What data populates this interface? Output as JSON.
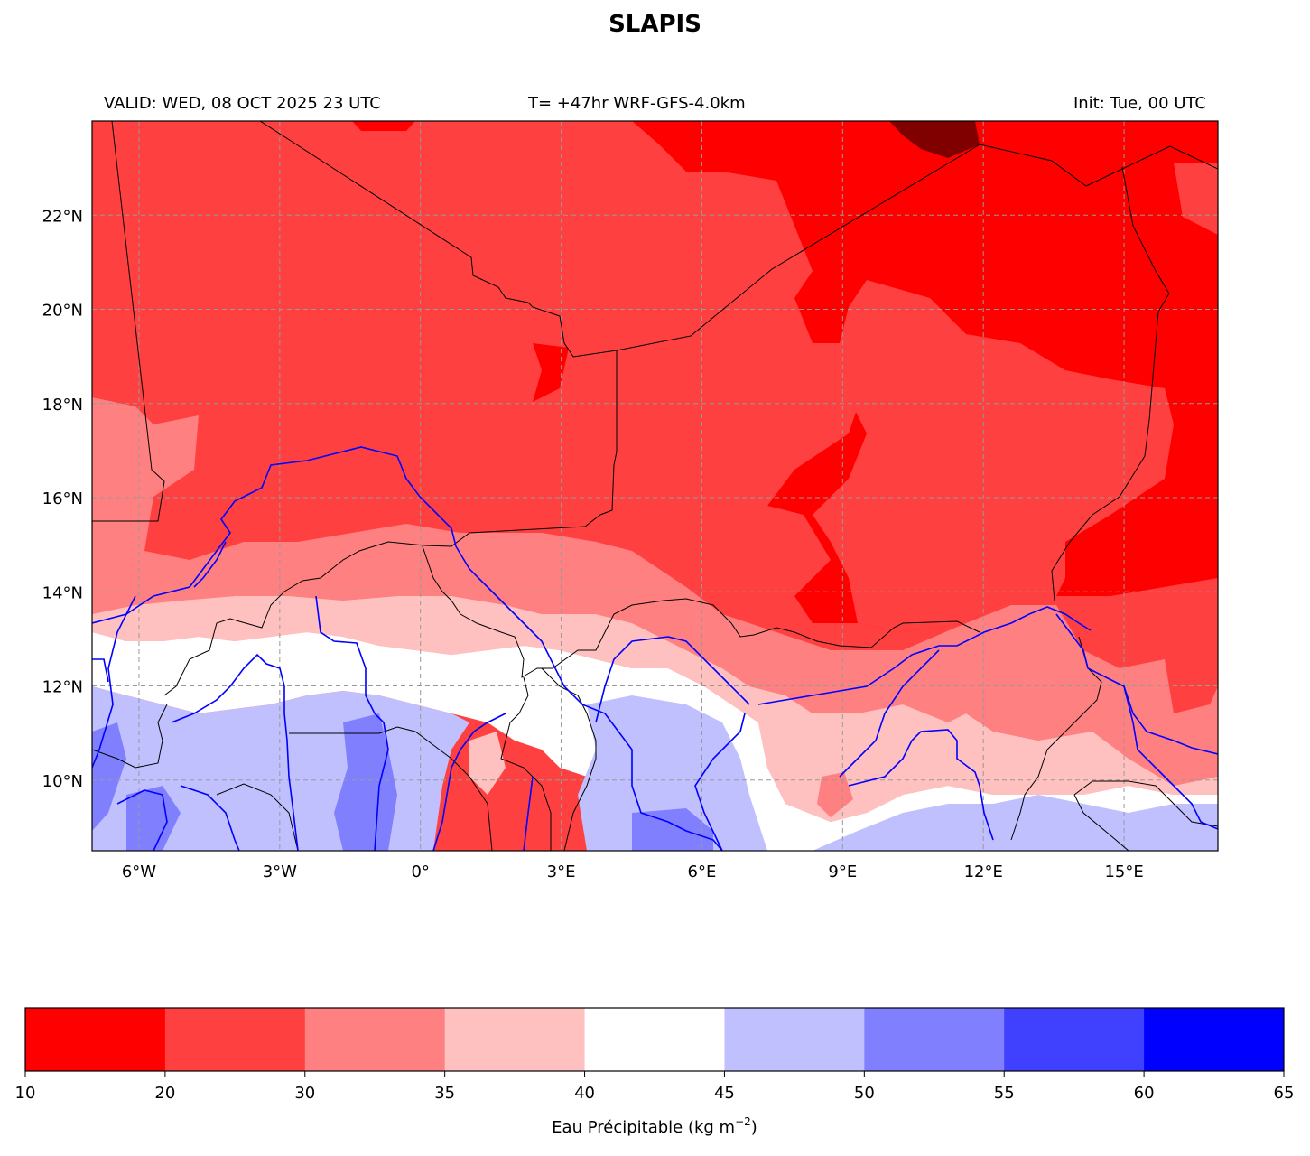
{
  "title": "SLAPIS",
  "header": {
    "valid": "VALID: WED, 08 OCT 2025 23 UTC",
    "run": "T= +47hr WRF-GFS-4.0km",
    "init": "Init: Tue, 00 UTC"
  },
  "map": {
    "lon_range": [
      -7,
      17
    ],
    "lat_range": [
      8.5,
      24
    ],
    "lon_ticks": [
      {
        "value": -6,
        "label": "6°W"
      },
      {
        "value": -3,
        "label": "3°W"
      },
      {
        "value": 0,
        "label": "0°"
      },
      {
        "value": 3,
        "label": "3°E"
      },
      {
        "value": 6,
        "label": "6°E"
      },
      {
        "value": 9,
        "label": "9°E"
      },
      {
        "value": 12,
        "label": "12°E"
      },
      {
        "value": 15,
        "label": "15°E"
      }
    ],
    "lat_ticks": [
      {
        "value": 10,
        "label": "10°N"
      },
      {
        "value": 12,
        "label": "12°N"
      },
      {
        "value": 14,
        "label": "14°N"
      },
      {
        "value": 16,
        "label": "16°N"
      },
      {
        "value": 18,
        "label": "18°N"
      },
      {
        "value": 20,
        "label": "20°N"
      },
      {
        "value": 22,
        "label": "22°N"
      }
    ],
    "gridlines": true,
    "border_color": "#000000",
    "river_color": "#0000ff"
  },
  "colorbar": {
    "label": "Eau Précipitable (kg m",
    "label_sup": "−2",
    "label_tail": ")",
    "ticks": [
      "10",
      "20",
      "30",
      "35",
      "40",
      "45",
      "50",
      "55",
      "60",
      "65"
    ],
    "colors": [
      "#ff0000",
      "#ff4040",
      "#ff8080",
      "#ffc0c0",
      "#ffffff",
      "#c0c0ff",
      "#8080ff",
      "#4040ff",
      "#0000ff"
    ]
  }
}
